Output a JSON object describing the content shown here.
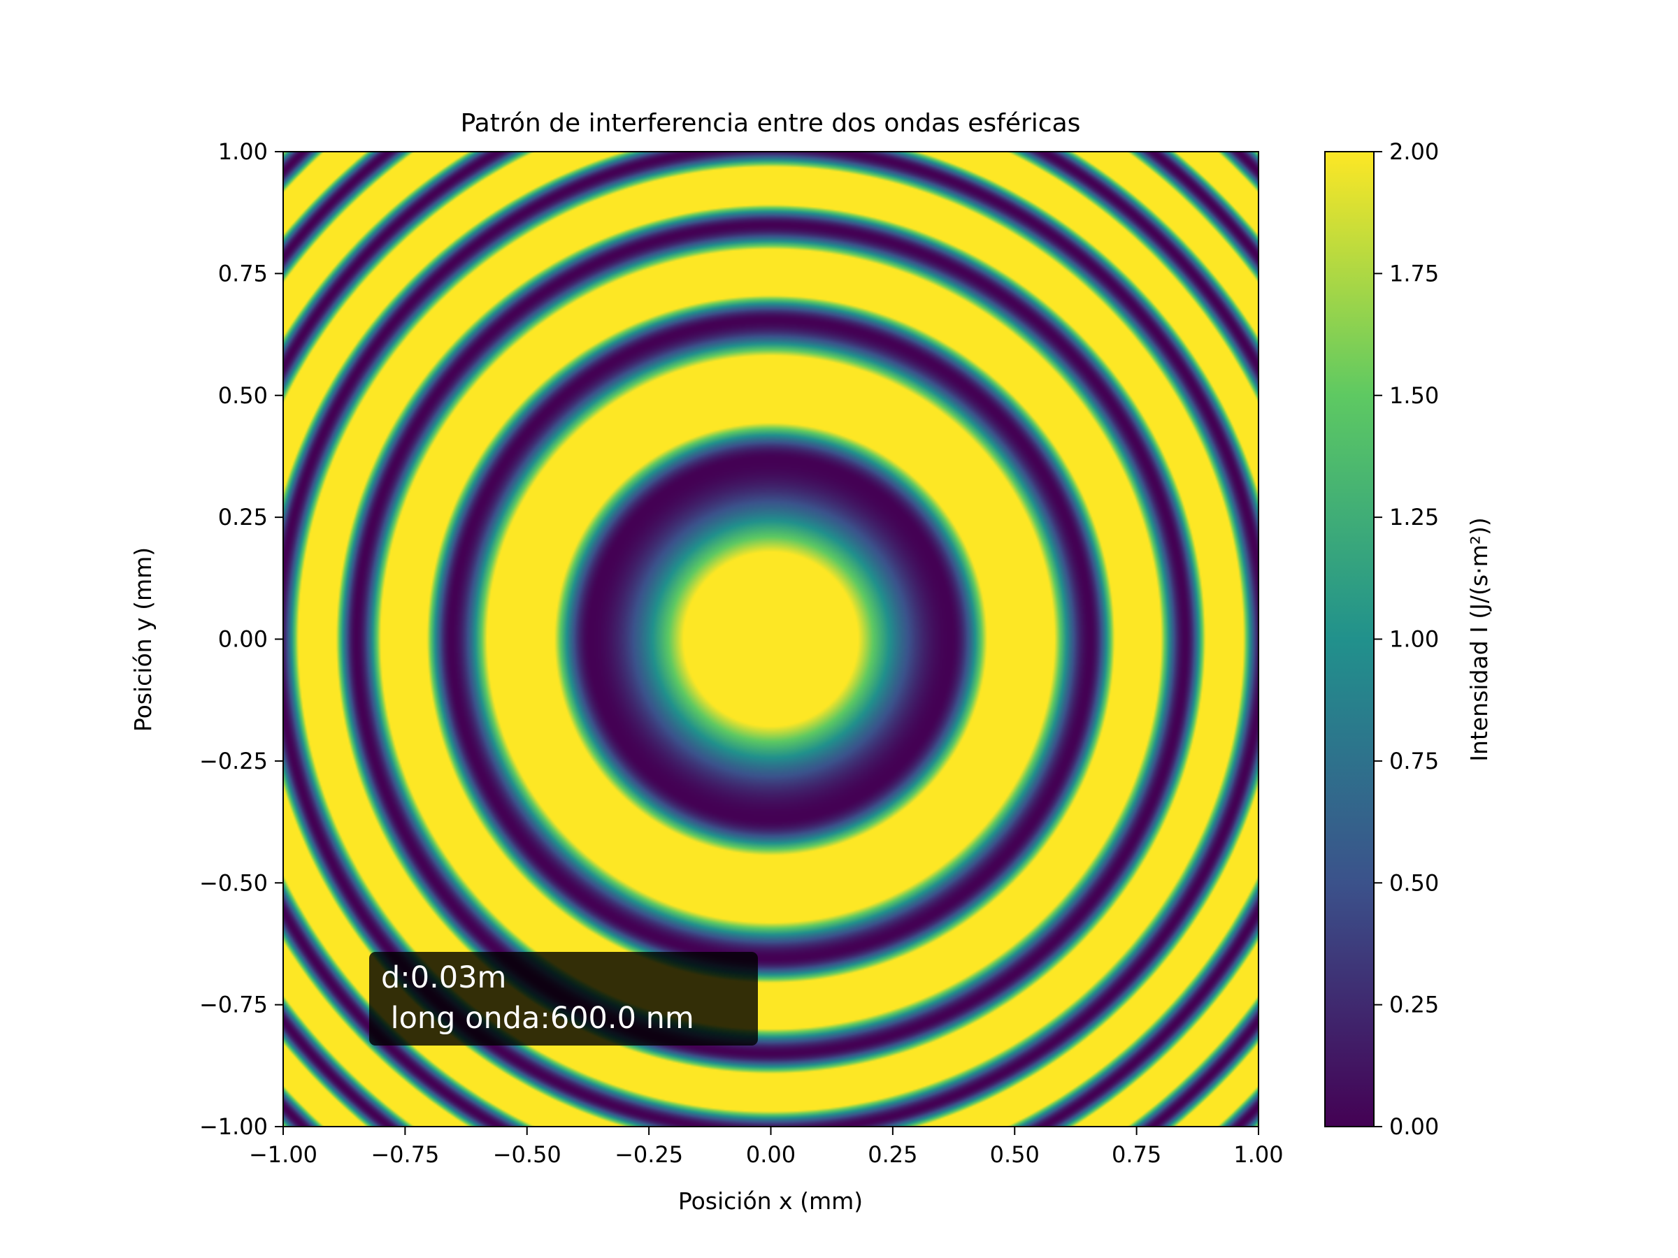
{
  "chart_data": {
    "type": "heatmap",
    "title": "Patrón de interferencia entre dos ondas esféricas",
    "xlabel": "Posición x (mm)",
    "ylabel": "Posición y (mm)",
    "xlim": [
      -1.0,
      1.0
    ],
    "ylim": [
      -1.0,
      1.0
    ],
    "x_ticks": [
      "−1.00",
      "−0.75",
      "−0.50",
      "−0.25",
      "0.00",
      "0.25",
      "0.50",
      "0.75",
      "1.00"
    ],
    "y_ticks": [
      "−1.00",
      "−0.75",
      "−0.50",
      "−0.25",
      "0.00",
      "0.25",
      "0.50",
      "0.75",
      "1.00"
    ],
    "x_tick_values": [
      -1.0,
      -0.75,
      -0.5,
      -0.25,
      0.0,
      0.25,
      0.5,
      0.75,
      1.0
    ],
    "y_tick_values": [
      -1.0,
      -0.75,
      -0.5,
      -0.25,
      0.0,
      0.25,
      0.5,
      0.75,
      1.0
    ],
    "colormap": "viridis",
    "colormap_stops": [
      "#440154",
      "#3b528b",
      "#21918c",
      "#5ec962",
      "#fde725"
    ],
    "colorbar": {
      "label": "Intensidad I (J/(s·m²))",
      "range": [
        0.0,
        2.0
      ],
      "ticks": [
        "0.00",
        "0.25",
        "0.50",
        "0.75",
        "1.00",
        "1.25",
        "1.50",
        "1.75",
        "2.00"
      ],
      "tick_values": [
        0.0,
        0.25,
        0.5,
        0.75,
        1.0,
        1.25,
        1.5,
        1.75,
        2.0
      ]
    },
    "pattern": {
      "description_of_values": "concentric rings centered at (0.00, 0.00)",
      "dark_ring_radii_mm": [
        0.37,
        0.655,
        0.85,
        1.01,
        1.145,
        1.27,
        1.385
      ],
      "grid": false
    },
    "annotation": {
      "line1": "d:0.03m",
      "line2": " long onda:600.0 nm",
      "position": "lower-left"
    }
  }
}
